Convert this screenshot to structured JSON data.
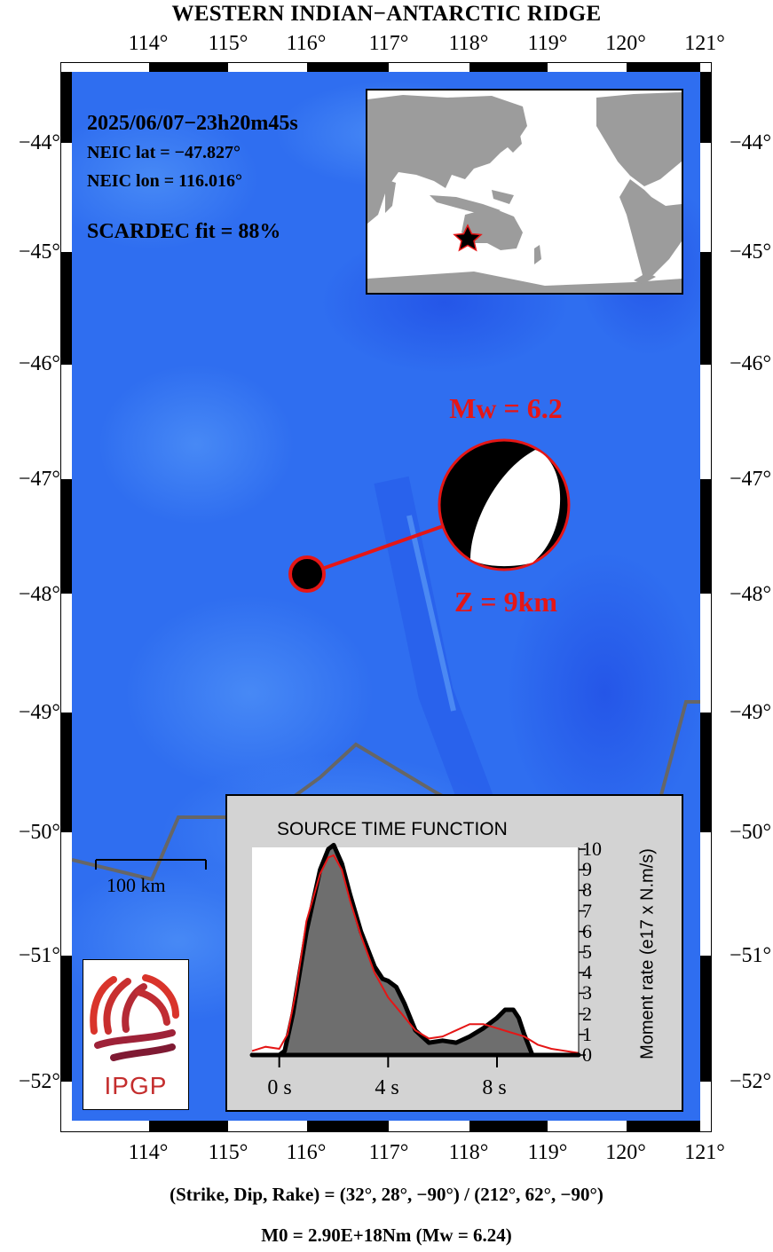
{
  "title": "WESTERN INDIAN−ANTARCTIC RIDGE",
  "lon_ticks": [
    "114°",
    "115°",
    "116°",
    "117°",
    "118°",
    "119°",
    "120°",
    "121°"
  ],
  "lat_ticks": [
    "−44°",
    "−45°",
    "−46°",
    "−47°",
    "−48°",
    "−49°",
    "−50°",
    "−51°",
    "−52°"
  ],
  "event": {
    "datetime": "2025/06/07−23h20m45s",
    "lat_text": "NEIC lat  = −47.827°",
    "lon_text": "NEIC lon = 116.016°",
    "fit_text": "SCARDEC fit = 88%",
    "latitude": -47.827,
    "longitude": 116.016,
    "mw_label": "Mw = 6.2",
    "depth_label": "Z =   9km"
  },
  "scale_bar": {
    "label": "100 km"
  },
  "stf": {
    "title": "SOURCE TIME FUNCTION",
    "ylabel": "Moment rate (e17 x N.m/s)",
    "x_tick_labels": [
      "0 s",
      "4 s",
      "8 s"
    ],
    "y_tick_labels": [
      "0",
      "1",
      "2",
      "3",
      "4",
      "5",
      "6",
      "7",
      "8",
      "9",
      "10"
    ],
    "ylim": [
      0,
      10
    ],
    "xlim": [
      -1,
      11
    ]
  },
  "chart_data": {
    "type": "area",
    "title": "SOURCE TIME FUNCTION",
    "xlabel": "",
    "ylabel": "Moment rate (e17 x N.m/s)",
    "xlim": [
      -1,
      11
    ],
    "ylim": [
      0,
      10
    ],
    "series": [
      {
        "name": "",
        "color": "#000000",
        "x": [
          -1,
          0,
          0.2,
          0.5,
          1.0,
          1.5,
          1.8,
          2.0,
          2.3,
          2.6,
          3.0,
          3.5,
          3.8,
          4.0,
          4.3,
          4.6,
          5.0,
          5.5,
          6.0,
          6.5,
          7.0,
          7.5,
          8.0,
          8.3,
          8.6,
          8.8,
          9.0,
          9.3,
          11
        ],
        "y": [
          0,
          0,
          0.2,
          2.0,
          6.0,
          9.0,
          10.0,
          10.2,
          9.3,
          7.8,
          6.0,
          4.3,
          3.7,
          3.6,
          3.3,
          2.5,
          1.2,
          0.6,
          0.7,
          0.6,
          0.9,
          1.3,
          1.8,
          2.2,
          2.2,
          1.8,
          1.0,
          0,
          0
        ]
      },
      {
        "name": "",
        "color": "#e51616",
        "x": [
          -1,
          -0.5,
          0,
          0.3,
          0.6,
          1.0,
          1.5,
          1.8,
          2.0,
          2.3,
          2.6,
          3.0,
          3.5,
          4.0,
          4.5,
          5.0,
          5.5,
          6.0,
          6.5,
          7.0,
          7.5,
          8.0,
          8.5,
          9.0,
          9.5,
          10.0,
          10.5,
          11
        ],
        "y": [
          0.2,
          0.4,
          0.3,
          1.0,
          3.0,
          6.5,
          8.8,
          9.6,
          9.7,
          9.0,
          7.5,
          5.8,
          4.0,
          2.8,
          2.0,
          1.2,
          0.8,
          0.9,
          1.2,
          1.5,
          1.5,
          1.3,
          1.1,
          0.9,
          0.5,
          0.3,
          0.2,
          0.1
        ]
      }
    ]
  },
  "focal_mechanism_text": "(Strike, Dip, Rake) = (32°, 28°, −90°) / (212°, 62°, −90°)",
  "moment_text": "M0 = 2.90E+18Nm  (Mw = 6.24)",
  "logo": {
    "text": "IPGP"
  },
  "colors": {
    "ocean": "#2f6ef0",
    "accent": "#e51616",
    "ridge": "#666666",
    "land": "#9c9c9c",
    "stf_background": "#d3d3d3",
    "stf_fill": "#6e6e6e"
  },
  "icons": [
    "epicenter-marker-icon",
    "beachball-icon",
    "location-star-icon",
    "ipgp-logo-icon"
  ]
}
